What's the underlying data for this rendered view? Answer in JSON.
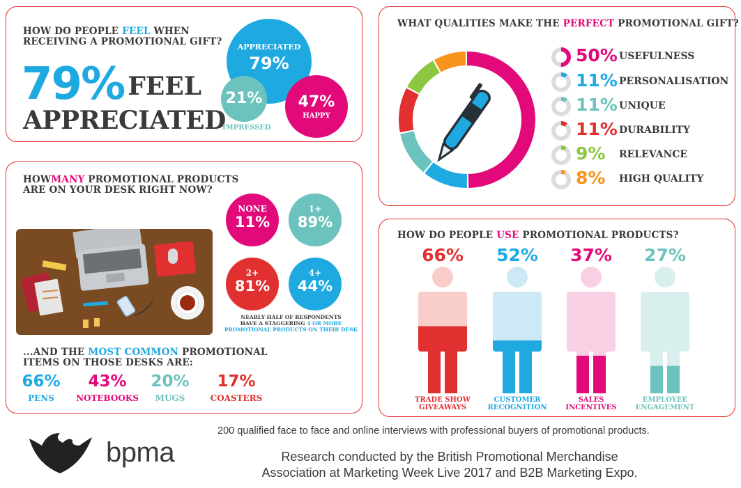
{
  "colors": {
    "cyan": "#1fa9e1",
    "pink": "#e2097a",
    "teal": "#6cc3bd",
    "red": "#e0302f",
    "green": "#8dc63f",
    "orange": "#f7941d",
    "grey": "#dcdcdc",
    "dark": "#3a3a3a"
  },
  "feel": {
    "question_pre": "HOW DO PEOPLE ",
    "question_hl": "FEEL",
    "question_post": " WHEN",
    "question_line2": "RECEIVING A PROMOTIONAL GIFT?",
    "big_pct": "79%",
    "big_word1": "FEEL",
    "big_word2": "APPRECIATED",
    "appreciated_label": "APPRECIATED",
    "appreciated_value": "79%",
    "impressed_value": "21%",
    "impressed_label": "IMPRESSED",
    "happy_value": "47%",
    "happy_label": "HAPPY"
  },
  "desk": {
    "question_pre": "HOW",
    "question_hl": "MANY",
    "question_post": " PROMOTIONAL PRODUCTS",
    "question_line2": "ARE ON YOUR DESK RIGHT NOW?",
    "circles": [
      {
        "label": "NONE",
        "value": "11%",
        "color": "#e2097a"
      },
      {
        "label": "1+",
        "value": "89%",
        "color": "#6cc3bd"
      },
      {
        "label": "2+",
        "value": "81%",
        "color": "#e0302f"
      },
      {
        "label": "4+",
        "value": "44%",
        "color": "#1fa9e1"
      }
    ],
    "note_line1": "NEARLY HALF OF RESPONDENTS",
    "note_line2_pre": "HAVE A STAGGERING ",
    "note_line2_hl": "4 OR MORE",
    "note_line3": "PROMOTIONAL PRODUCTS ON THEIR DESK",
    "common_pre": "...AND THE ",
    "common_hl": "MOST COMMON",
    "common_post": " PROMOTIONAL",
    "common_line2": "ITEMS ON THOSE DESKS ARE:",
    "items": [
      {
        "value": "66%",
        "label": "PENS",
        "color": "#1fa9e1"
      },
      {
        "value": "43%",
        "label": "NOTEBOOKS",
        "color": "#e2097a"
      },
      {
        "value": "20%",
        "label": "MUGS",
        "color": "#6cc3bd"
      },
      {
        "value": "17%",
        "label": "COASTERS",
        "color": "#e0302f"
      }
    ]
  },
  "qualities": {
    "question_pre": "WHAT QUALITIES MAKE THE ",
    "question_hl": "PERFECT",
    "question_post": " PROMOTIONAL GIFT?",
    "rows": [
      {
        "value": "50%",
        "fraction": 0.5,
        "label": "USEFULNESS",
        "color": "#e2097a"
      },
      {
        "value": "11%",
        "fraction": 0.11,
        "label": "PERSONALISATION",
        "color": "#1fa9e1"
      },
      {
        "value": "11%",
        "fraction": 0.11,
        "label": "UNIQUE",
        "color": "#6cc3bd"
      },
      {
        "value": "11%",
        "fraction": 0.11,
        "label": "DURABILITY",
        "color": "#e0302f"
      },
      {
        "value": "9%",
        "fraction": 0.09,
        "label": "RELEVANCE",
        "color": "#8dc63f"
      },
      {
        "value": "8%",
        "fraction": 0.08,
        "label": "HIGH QUALITY",
        "color": "#f7941d"
      }
    ]
  },
  "usage": {
    "question_pre": "HOW DO PEOPLE ",
    "question_hl": "USE",
    "question_post": " PROMOTIONAL PRODUCTS?",
    "figures": [
      {
        "value": "66%",
        "fraction": 0.66,
        "label1": "TRADE SHOW",
        "label2": "GIVEAWAYS",
        "color": "#e0302f",
        "light": "#f9cdca"
      },
      {
        "value": "52%",
        "fraction": 0.52,
        "label1": "CUSTOMER",
        "label2": "RECOGNITION",
        "color": "#1fa9e1",
        "light": "#cde9f6"
      },
      {
        "value": "37%",
        "fraction": 0.37,
        "label1": "SALES",
        "label2": "INCENTIVES",
        "color": "#e2097a",
        "light": "#f8cfe3"
      },
      {
        "value": "27%",
        "fraction": 0.27,
        "label1": "EMPLOYEE",
        "label2": "ENGAGEMENT",
        "color": "#6cc3bd",
        "light": "#d9efed"
      }
    ]
  },
  "footer": {
    "survey_note": "200 qualified face to face and online interviews with professional buyers of promotional products.",
    "logo_text": "bpma",
    "research_line1": "Research conducted by the British Promotional Merchandise",
    "research_line2": "Association at Marketing Week Live 2017 and B2B Marketing Expo."
  }
}
